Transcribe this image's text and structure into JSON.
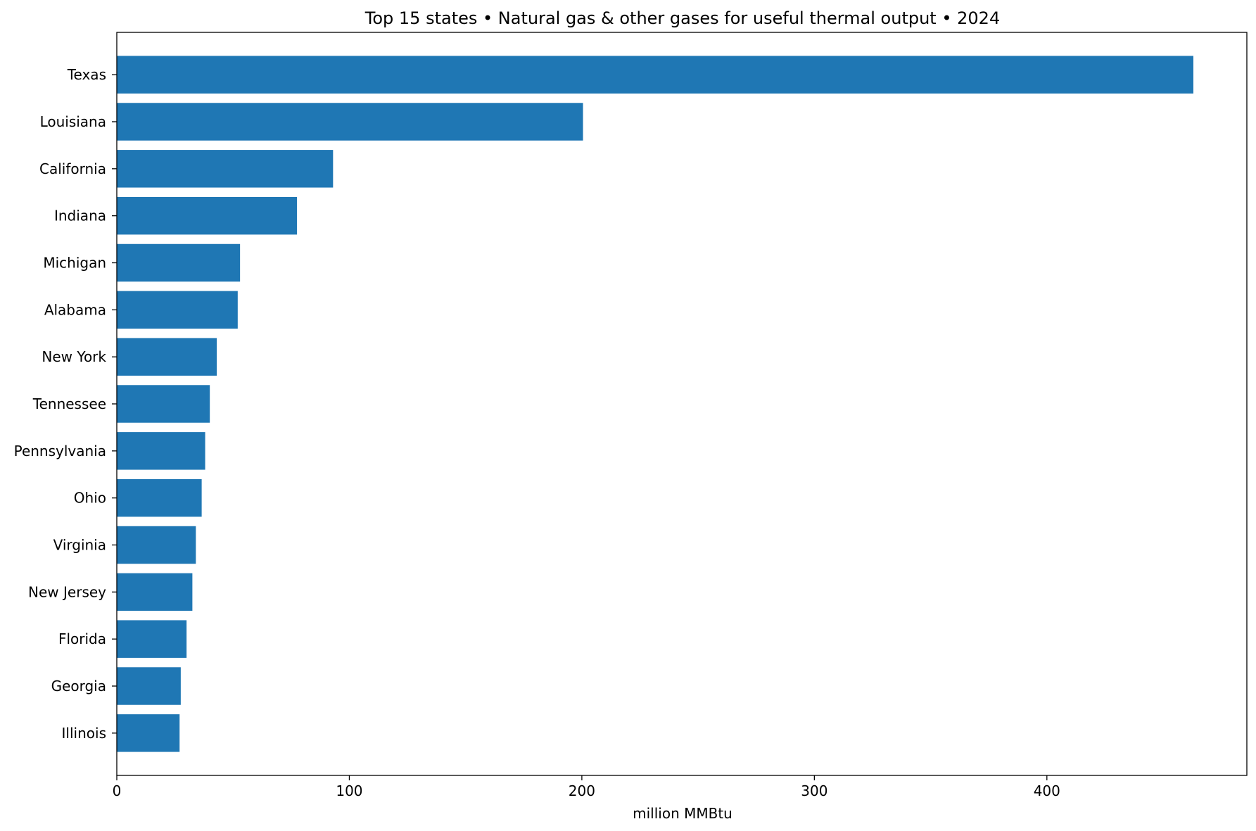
{
  "chart_data": {
    "type": "bar",
    "orientation": "horizontal",
    "title": "Top 15 states • Natural gas & other gases for useful thermal output • 2024",
    "xlabel": "million MMBtu",
    "ylabel": "",
    "xlim": [
      0,
      486
    ],
    "xticks": [
      0,
      100,
      200,
      300,
      400
    ],
    "grid": false,
    "legend": "none",
    "bar_color": "#1f77b4",
    "categories": [
      "Texas",
      "Louisiana",
      "California",
      "Indiana",
      "Michigan",
      "Alabama",
      "New York",
      "Tennessee",
      "Pennsylvania",
      "Ohio",
      "Virginia",
      "New Jersey",
      "Florida",
      "Georgia",
      "Illinois"
    ],
    "values": [
      463,
      200.5,
      93,
      77.5,
      53,
      52,
      43,
      40,
      38,
      36.5,
      34,
      32.5,
      30,
      27.5,
      27
    ]
  }
}
